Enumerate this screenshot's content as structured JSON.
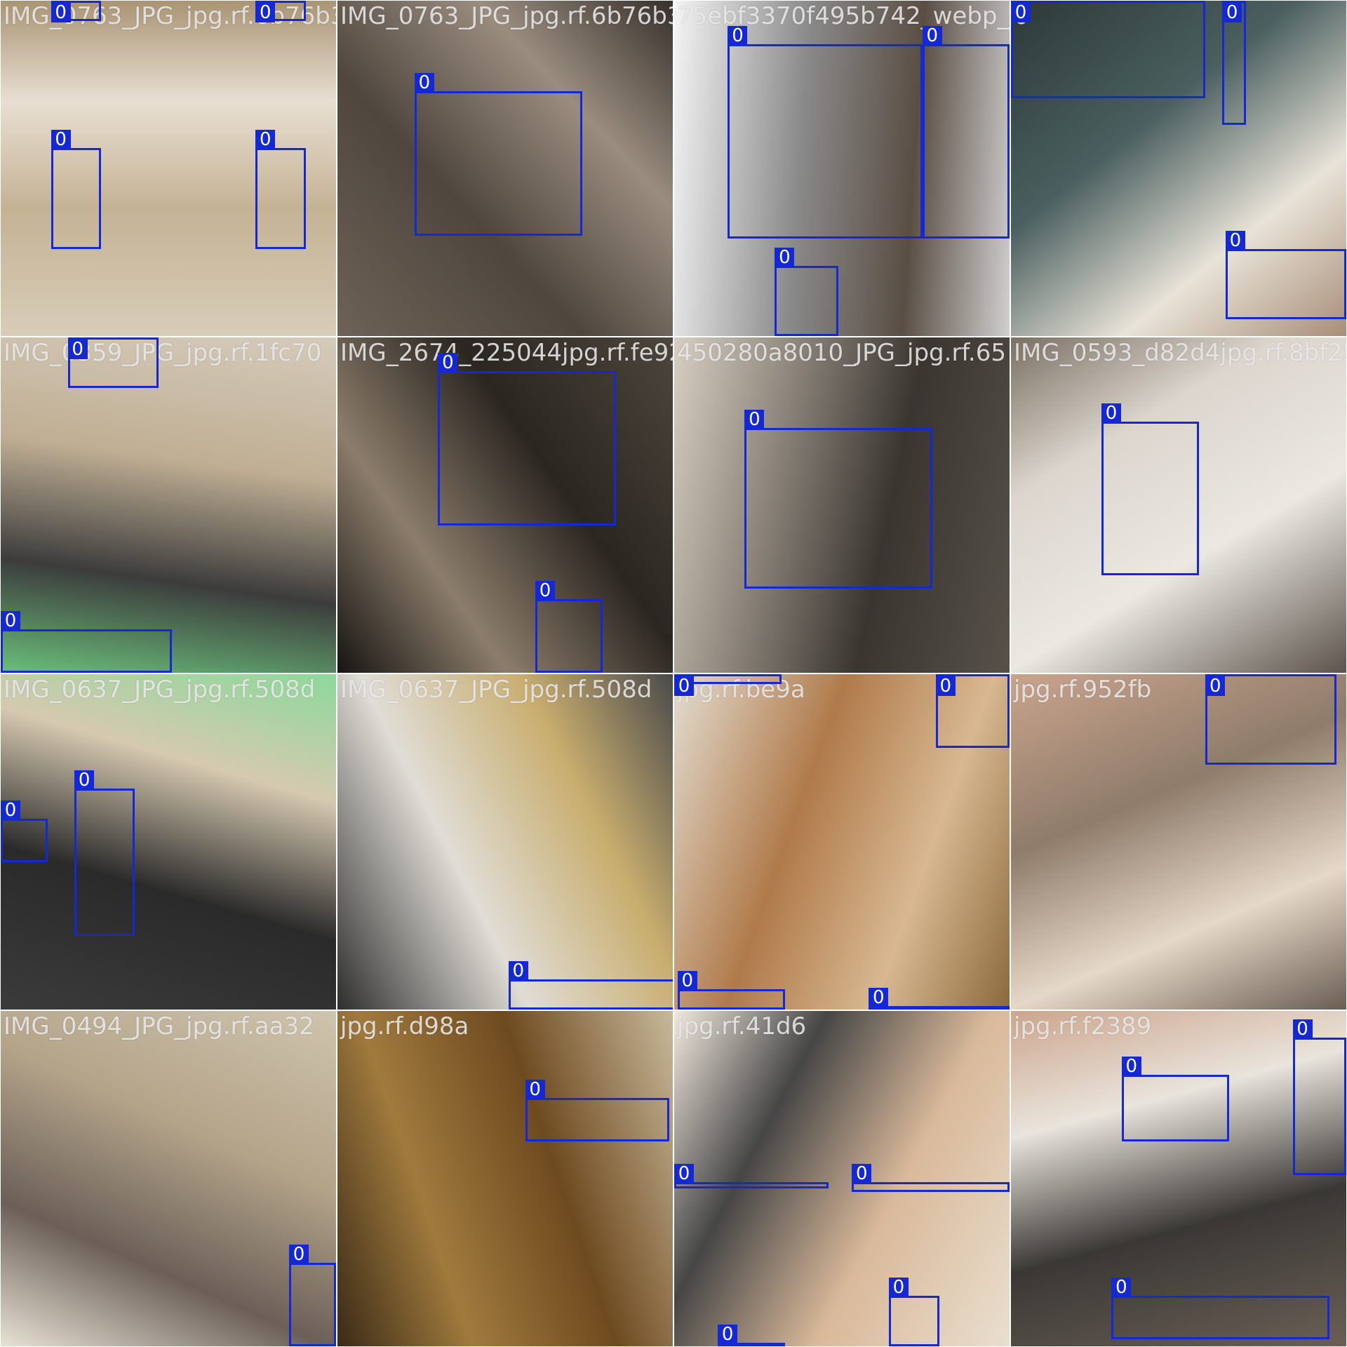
{
  "colors": {
    "box": "#1428d6",
    "label_bg": "#1428d6",
    "label_text": "#ffffff",
    "caption": "#eeeeee"
  },
  "class_label": "0",
  "tiles": [
    {
      "caption": "IMG_0763_JPG_jpg.rf.6b76b3363a6ea0e63jpg.rf.2a6c",
      "scene": [
        "#d8cdb8",
        "#c4b294",
        "#e8dfd2",
        "#a99474"
      ],
      "boxes": 4
    },
    {
      "caption": "IMG_0763_JPG_jpg.rf.6b76b3363a6ea0e63jpg.rf.2a6c",
      "scene": [
        "#6d6257",
        "#4f463e",
        "#9a8d7f",
        "#37302b"
      ],
      "boxes": 1
    },
    {
      "caption": "75ebf3370f495b742_webp_jpg.rf.a75fd153JPG_jpg.rf.0f",
      "scene": [
        "#f4f4f4",
        "#8a8a8a",
        "#5a4e44",
        "#d0d0d0"
      ],
      "boxes": 3
    },
    {
      "caption": "0",
      "scene": [
        "#2d3838",
        "#4a5f5f",
        "#e8e3d8",
        "#a88e78"
      ],
      "boxes": 3
    },
    {
      "caption": "IMG_0359_JPG_jpg.rf.1fc70",
      "scene": [
        "#d5cbba",
        "#bfae93",
        "#3c3c3c",
        "#6abf7a"
      ],
      "boxes": 2
    },
    {
      "caption": "IMG_2674_225044jpg.rf.fe927",
      "scene": [
        "#4d463d",
        "#2b2621",
        "#8c7d6b",
        "#161412"
      ],
      "boxes": 2
    },
    {
      "caption": "450280a8010_JPG_jpg.rf.65",
      "scene": [
        "#57514a",
        "#3a3530",
        "#8e877d",
        "#d7cfc2"
      ],
      "boxes": 1
    },
    {
      "caption": "IMG_0593_d82d4jpg.rf.8bf25",
      "scene": [
        "#5c544c",
        "#ebe8e2",
        "#dbd5cd",
        "#7a6f63"
      ],
      "boxes": 1
    },
    {
      "caption": "IMG_0637_JPG_jpg.rf.508d",
      "scene": [
        "#3b3b3b",
        "#2a2a2a",
        "#d6c9b0",
        "#8bd99a"
      ],
      "boxes": 2
    },
    {
      "caption": "IMG_0637_JPG_jpg.rf.508d",
      "scene": [
        "#2e2e2e",
        "#e0ddd6",
        "#c8ad6e",
        "#4a4a4a"
      ],
      "boxes": 1
    },
    {
      "caption": "jpg.rf.be9a",
      "scene": [
        "#e3ddd1",
        "#b07a4a",
        "#d8b891",
        "#8a6a3a"
      ],
      "boxes": 4
    },
    {
      "caption": "jpg.rf.952fb",
      "scene": [
        "#c9a48c",
        "#8f7c6b",
        "#e6d8c8",
        "#6a5e53"
      ],
      "boxes": 1
    },
    {
      "caption": "IMG_0494_JPG_jpg.rf.aa32",
      "scene": [
        "#cfc4ad",
        "#b3a389",
        "#6b5f58",
        "#e8e2d6"
      ],
      "boxes": 1
    },
    {
      "caption": "jpg.rf.d98a",
      "scene": [
        "#c8b99b",
        "#6e4a1f",
        "#a07a3d",
        "#3a2a16"
      ],
      "boxes": 1
    },
    {
      "caption": "jpg.rf.41d6",
      "scene": [
        "#e9dfcf",
        "#d9b99a",
        "#464646",
        "#f1e9de"
      ],
      "boxes": 5
    },
    {
      "caption": "jpg.rf.f2389",
      "scene": [
        "#6a5f55",
        "#3a3835",
        "#e9e4dc",
        "#cca58c"
      ],
      "boxes": 3
    }
  ]
}
